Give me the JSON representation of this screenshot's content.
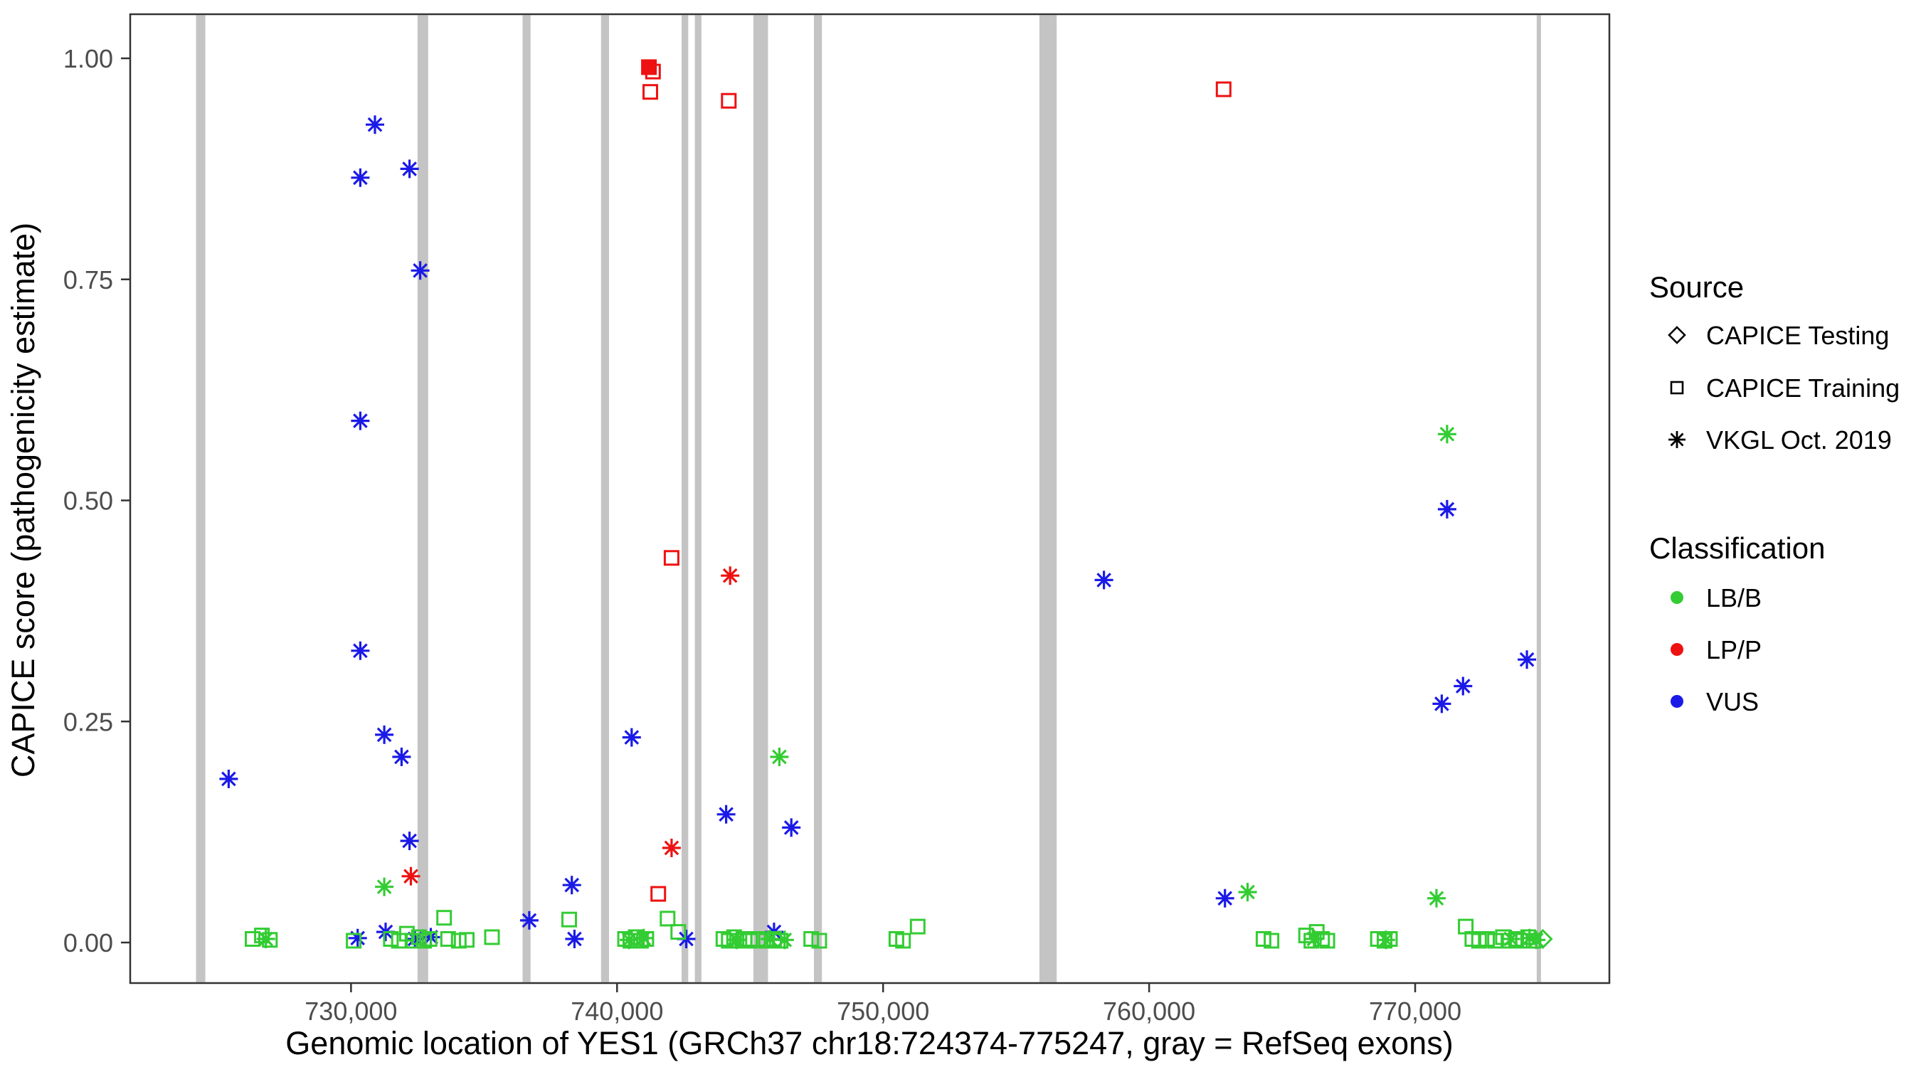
{
  "chart_data": {
    "type": "scatter",
    "title": "",
    "xlabel": "Genomic location of YES1 (GRCh37 chr18:724374-775247, gray = RefSeq exons)",
    "ylabel": "CAPICE score (pathogenicity estimate)",
    "xlim": [
      721700,
      777300
    ],
    "ylim": [
      0,
      1
    ],
    "grid": "off",
    "legend_position": "right",
    "x_ticks": [
      {
        "value": 730000,
        "label": "730,000"
      },
      {
        "value": 740000,
        "label": "740,000"
      },
      {
        "value": 750000,
        "label": "750,000"
      },
      {
        "value": 760000,
        "label": "760,000"
      },
      {
        "value": 770000,
        "label": "770,000"
      }
    ],
    "y_ticks": [
      {
        "value": 0.0,
        "label": "0.00"
      },
      {
        "value": 0.25,
        "label": "0.25"
      },
      {
        "value": 0.5,
        "label": "0.50"
      },
      {
        "value": 0.75,
        "label": "0.75"
      },
      {
        "value": 1.0,
        "label": "1.00"
      }
    ],
    "legend": {
      "source": {
        "title": "Source",
        "items": [
          {
            "label": "CAPICE Testing",
            "shape": "open-diamond"
          },
          {
            "label": "CAPICE Training",
            "shape": "open-square"
          },
          {
            "label": "VKGL Oct. 2019",
            "shape": "asterisk"
          }
        ]
      },
      "classification": {
        "title": "Classification",
        "items": [
          {
            "label": "LB/B",
            "color": "#33CC33"
          },
          {
            "label": "LP/P",
            "color": "#EE1111"
          },
          {
            "label": "VUS",
            "color": "#1A1AE8"
          }
        ]
      }
    },
    "colors": {
      "LB/B": "#33CC33",
      "LP/P": "#EE1111",
      "VUS": "#1A1AE8",
      "exon": "#C4C4C4"
    },
    "exon_format": [
      "center_genomic_position",
      "width_bp"
    ],
    "exons": [
      [
        724350,
        350
      ],
      [
        732700,
        400
      ],
      [
        736600,
        300
      ],
      [
        739550,
        300
      ],
      [
        742550,
        250
      ],
      [
        743050,
        250
      ],
      [
        745400,
        550
      ],
      [
        747550,
        300
      ],
      [
        756200,
        650
      ],
      [
        774650,
        160
      ]
    ],
    "point_format": [
      "genomic_position",
      "capice_score",
      "shape_code",
      "classification"
    ],
    "shape_codes": {
      "a": "asterisk (VKGL Oct. 2019)",
      "s": "open square (CAPICE Training)",
      "fs": "filled square (CAPICE Training)",
      "d": "open diamond (CAPICE Testing)"
    },
    "points": [
      [
        725400,
        0.185,
        "a",
        "VUS"
      ],
      [
        730350,
        0.865,
        "a",
        "VUS"
      ],
      [
        730900,
        0.925,
        "a",
        "VUS"
      ],
      [
        732200,
        0.875,
        "a",
        "VUS"
      ],
      [
        732600,
        0.76,
        "a",
        "VUS"
      ],
      [
        730350,
        0.59,
        "a",
        "VUS"
      ],
      [
        730350,
        0.33,
        "a",
        "VUS"
      ],
      [
        731250,
        0.235,
        "a",
        "VUS"
      ],
      [
        731900,
        0.21,
        "a",
        "VUS"
      ],
      [
        732200,
        0.115,
        "a",
        "VUS"
      ],
      [
        730250,
        0.005,
        "a",
        "VUS"
      ],
      [
        731300,
        0.012,
        "a",
        "VUS"
      ],
      [
        732400,
        0.004,
        "a",
        "VUS"
      ],
      [
        733000,
        0.006,
        "a",
        "VUS"
      ],
      [
        736700,
        0.025,
        "a",
        "VUS"
      ],
      [
        738300,
        0.065,
        "a",
        "VUS"
      ],
      [
        738400,
        0.004,
        "a",
        "VUS"
      ],
      [
        740550,
        0.232,
        "a",
        "VUS"
      ],
      [
        742600,
        0.004,
        "a",
        "VUS"
      ],
      [
        744100,
        0.145,
        "a",
        "VUS"
      ],
      [
        745900,
        0.012,
        "a",
        "VUS"
      ],
      [
        746550,
        0.13,
        "a",
        "VUS"
      ],
      [
        758300,
        0.41,
        "a",
        "VUS"
      ],
      [
        762850,
        0.05,
        "a",
        "VUS"
      ],
      [
        771000,
        0.27,
        "a",
        "VUS"
      ],
      [
        771200,
        0.49,
        "a",
        "VUS"
      ],
      [
        771800,
        0.29,
        "a",
        "VUS"
      ],
      [
        774200,
        0.32,
        "a",
        "VUS"
      ],
      [
        741200,
        0.99,
        "fs",
        "LP/P"
      ],
      [
        741350,
        0.985,
        "s",
        "LP/P"
      ],
      [
        741250,
        0.962,
        "s",
        "LP/P"
      ],
      [
        744200,
        0.952,
        "s",
        "LP/P"
      ],
      [
        762800,
        0.965,
        "s",
        "LP/P"
      ],
      [
        742050,
        0.435,
        "s",
        "LP/P"
      ],
      [
        744250,
        0.415,
        "a",
        "LP/P"
      ],
      [
        742050,
        0.107,
        "a",
        "LP/P"
      ],
      [
        741550,
        0.055,
        "s",
        "LP/P"
      ],
      [
        732250,
        0.075,
        "a",
        "LP/P"
      ],
      [
        731250,
        0.063,
        "a",
        "LB/B"
      ],
      [
        746100,
        0.21,
        "a",
        "LB/B"
      ],
      [
        771200,
        0.575,
        "a",
        "LB/B"
      ],
      [
        763700,
        0.057,
        "a",
        "LB/B"
      ],
      [
        770800,
        0.05,
        "a",
        "LB/B"
      ],
      [
        726300,
        0.004,
        "s",
        "LB/B"
      ],
      [
        726650,
        0.008,
        "s",
        "LB/B"
      ],
      [
        726950,
        0.003,
        "s",
        "LB/B"
      ],
      [
        726800,
        0.004,
        "a",
        "LB/B"
      ],
      [
        730100,
        0.002,
        "s",
        "LB/B"
      ],
      [
        731500,
        0.004,
        "s",
        "LB/B"
      ],
      [
        731800,
        0.002,
        "s",
        "LB/B"
      ],
      [
        732100,
        0.01,
        "s",
        "LB/B"
      ],
      [
        732350,
        0.002,
        "s",
        "LB/B"
      ],
      [
        732550,
        0.006,
        "s",
        "LB/B"
      ],
      [
        732750,
        0.002,
        "s",
        "LB/B"
      ],
      [
        732950,
        0.004,
        "s",
        "LB/B"
      ],
      [
        733500,
        0.028,
        "s",
        "LB/B"
      ],
      [
        733650,
        0.004,
        "s",
        "LB/B"
      ],
      [
        734050,
        0.002,
        "s",
        "LB/B"
      ],
      [
        734350,
        0.003,
        "s",
        "LB/B"
      ],
      [
        735300,
        0.006,
        "s",
        "LB/B"
      ],
      [
        738200,
        0.026,
        "s",
        "LB/B"
      ],
      [
        740300,
        0.004,
        "s",
        "LB/B"
      ],
      [
        740500,
        0.002,
        "s",
        "LB/B"
      ],
      [
        740700,
        0.006,
        "s",
        "LB/B"
      ],
      [
        740900,
        0.002,
        "s",
        "LB/B"
      ],
      [
        741100,
        0.004,
        "s",
        "LB/B"
      ],
      [
        740450,
        0.003,
        "a",
        "LB/B"
      ],
      [
        741000,
        0.005,
        "a",
        "LB/B"
      ],
      [
        741900,
        0.027,
        "s",
        "LB/B"
      ],
      [
        742300,
        0.012,
        "s",
        "LB/B"
      ],
      [
        744000,
        0.004,
        "s",
        "LB/B"
      ],
      [
        744200,
        0.002,
        "s",
        "LB/B"
      ],
      [
        744400,
        0.006,
        "s",
        "LB/B"
      ],
      [
        744600,
        0.002,
        "s",
        "LB/B"
      ],
      [
        744800,
        0.004,
        "s",
        "LB/B"
      ],
      [
        745000,
        0.002,
        "s",
        "LB/B"
      ],
      [
        745300,
        0.004,
        "s",
        "LB/B"
      ],
      [
        745600,
        0.002,
        "s",
        "LB/B"
      ],
      [
        745900,
        0.004,
        "s",
        "LB/B"
      ],
      [
        746150,
        0.002,
        "s",
        "LB/B"
      ],
      [
        744500,
        0.003,
        "a",
        "LB/B"
      ],
      [
        745750,
        0.004,
        "a",
        "LB/B"
      ],
      [
        746300,
        0.003,
        "a",
        "LB/B"
      ],
      [
        747300,
        0.004,
        "s",
        "LB/B"
      ],
      [
        747600,
        0.002,
        "s",
        "LB/B"
      ],
      [
        750500,
        0.004,
        "s",
        "LB/B"
      ],
      [
        750750,
        0.002,
        "s",
        "LB/B"
      ],
      [
        751300,
        0.018,
        "s",
        "LB/B"
      ],
      [
        764300,
        0.004,
        "s",
        "LB/B"
      ],
      [
        764600,
        0.002,
        "s",
        "LB/B"
      ],
      [
        765900,
        0.008,
        "s",
        "LB/B"
      ],
      [
        766100,
        0.002,
        "s",
        "LB/B"
      ],
      [
        766300,
        0.012,
        "s",
        "LB/B"
      ],
      [
        766500,
        0.004,
        "s",
        "LB/B"
      ],
      [
        766700,
        0.002,
        "s",
        "LB/B"
      ],
      [
        766200,
        0.004,
        "a",
        "LB/B"
      ],
      [
        768600,
        0.004,
        "s",
        "LB/B"
      ],
      [
        768850,
        0.002,
        "s",
        "LB/B"
      ],
      [
        769050,
        0.004,
        "s",
        "LB/B"
      ],
      [
        768900,
        0.003,
        "a",
        "LB/B"
      ],
      [
        771900,
        0.018,
        "s",
        "LB/B"
      ],
      [
        772150,
        0.004,
        "s",
        "LB/B"
      ],
      [
        772400,
        0.002,
        "s",
        "LB/B"
      ],
      [
        772700,
        0.004,
        "s",
        "LB/B"
      ],
      [
        773000,
        0.002,
        "s",
        "LB/B"
      ],
      [
        773300,
        0.006,
        "s",
        "LB/B"
      ],
      [
        773550,
        0.002,
        "s",
        "LB/B"
      ],
      [
        773800,
        0.004,
        "s",
        "LB/B"
      ],
      [
        774050,
        0.002,
        "s",
        "LB/B"
      ],
      [
        774250,
        0.006,
        "s",
        "LB/B"
      ],
      [
        774450,
        0.002,
        "s",
        "LB/B"
      ],
      [
        773600,
        0.004,
        "a",
        "LB/B"
      ],
      [
        774300,
        0.005,
        "a",
        "LB/B"
      ],
      [
        774550,
        0.003,
        "a",
        "LB/B"
      ],
      [
        774800,
        0.004,
        "d",
        "LB/B"
      ]
    ]
  }
}
